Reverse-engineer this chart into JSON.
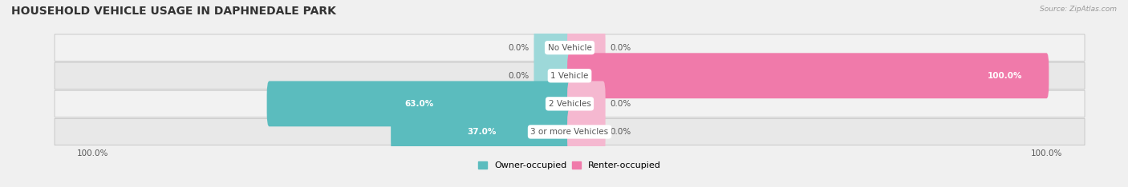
{
  "title": "HOUSEHOLD VEHICLE USAGE IN DAPHNEDALE PARK",
  "source": "Source: ZipAtlas.com",
  "categories": [
    "No Vehicle",
    "1 Vehicle",
    "2 Vehicles",
    "3 or more Vehicles"
  ],
  "owner_values": [
    0.0,
    0.0,
    63.0,
    37.0
  ],
  "renter_values": [
    0.0,
    100.0,
    0.0,
    0.0
  ],
  "owner_color": "#5bbcbe",
  "renter_color": "#f07aaa",
  "renter_stub_color": "#f5b8d0",
  "owner_stub_color": "#9dd8d9",
  "row_bg_even": "#f2f2f2",
  "row_bg_odd": "#e8e8e8",
  "row_border_color": "#cccccc",
  "label_bg_color": "#ffffff",
  "text_color": "#555555",
  "white_text": "#ffffff",
  "stub_size": 7.0,
  "max_value": 100.0,
  "bar_height": 0.62,
  "figsize": [
    14.06,
    2.34
  ],
  "dpi": 100,
  "title_fontsize": 10,
  "value_fontsize": 7.5,
  "cat_fontsize": 7.5,
  "tick_fontsize": 7.5,
  "legend_fontsize": 8
}
